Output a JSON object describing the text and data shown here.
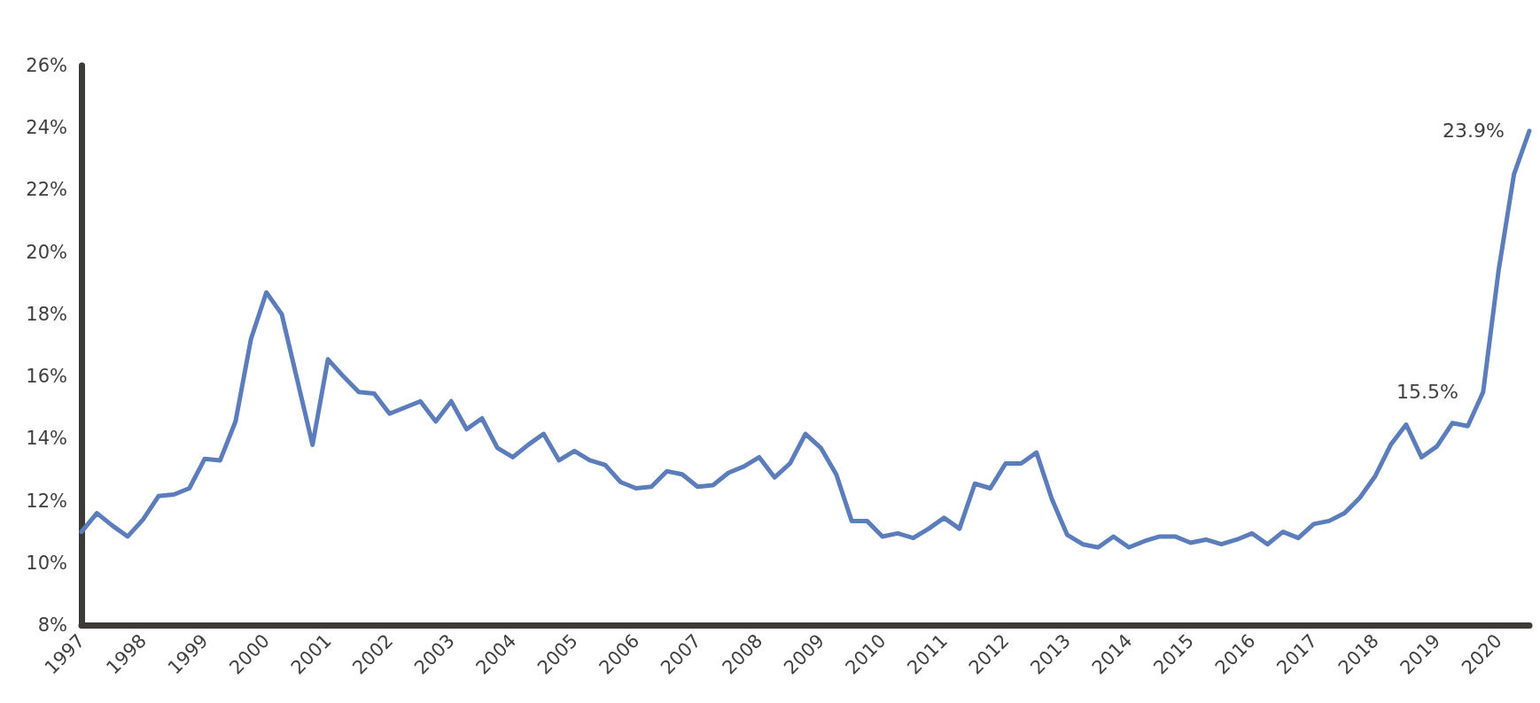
{
  "chart_data": {
    "type": "line",
    "marker": "none",
    "grid": false,
    "categories": [
      "1997",
      null,
      null,
      null,
      "1998",
      null,
      null,
      null,
      "1999",
      null,
      null,
      null,
      "2000",
      null,
      null,
      null,
      "2001",
      null,
      null,
      null,
      "2002",
      null,
      null,
      null,
      "2003",
      null,
      null,
      null,
      "2004",
      null,
      null,
      null,
      "2005",
      null,
      null,
      null,
      "2006",
      null,
      null,
      null,
      "2007",
      null,
      null,
      null,
      "2008",
      null,
      null,
      null,
      "2009",
      null,
      null,
      null,
      "2010",
      null,
      null,
      null,
      "2011",
      null,
      null,
      null,
      "2012",
      null,
      null,
      null,
      "2013",
      null,
      null,
      null,
      "2014",
      null,
      null,
      null,
      "2015",
      null,
      null,
      null,
      "2016",
      null,
      null,
      null,
      "2017",
      null,
      null,
      null,
      "2018",
      null,
      null,
      null,
      "2019",
      null,
      null,
      null,
      "2020",
      null,
      null
    ],
    "series": [
      {
        "color": "#5b7dbb",
        "values": [
          11.0,
          11.6,
          11.2,
          10.85,
          11.4,
          12.15,
          12.2,
          12.4,
          13.35,
          13.3,
          14.55,
          17.2,
          18.7,
          18.0,
          15.9,
          13.8,
          16.55,
          16.0,
          15.5,
          15.45,
          14.8,
          15.0,
          15.2,
          14.55,
          15.2,
          14.3,
          14.65,
          13.7,
          13.4,
          13.8,
          14.15,
          13.3,
          13.6,
          13.3,
          13.15,
          12.6,
          12.4,
          12.45,
          12.95,
          12.85,
          12.45,
          12.5,
          12.9,
          13.1,
          13.4,
          12.75,
          13.2,
          14.15,
          13.7,
          12.85,
          11.35,
          11.35,
          10.85,
          10.95,
          10.8,
          11.1,
          11.45,
          11.1,
          12.55,
          12.4,
          13.2,
          13.2,
          13.55,
          12.05,
          10.9,
          10.6,
          10.5,
          10.85,
          10.5,
          10.7,
          10.85,
          10.85,
          10.65,
          10.75,
          10.6,
          10.75,
          10.95,
          10.6,
          11.0,
          10.8,
          11.25,
          11.35,
          11.6,
          12.1,
          12.8,
          13.8,
          14.45,
          13.4,
          13.75,
          14.5,
          14.4,
          15.5,
          19.4,
          22.5,
          23.9
        ],
        "value_labels": [
          null,
          null,
          null,
          null,
          null,
          null,
          null,
          null,
          null,
          null,
          null,
          null,
          null,
          null,
          null,
          null,
          null,
          null,
          null,
          null,
          null,
          null,
          null,
          null,
          null,
          null,
          null,
          null,
          null,
          null,
          null,
          null,
          null,
          null,
          null,
          null,
          null,
          null,
          null,
          null,
          null,
          null,
          null,
          null,
          null,
          null,
          null,
          null,
          null,
          null,
          null,
          null,
          null,
          null,
          null,
          null,
          null,
          null,
          null,
          null,
          null,
          null,
          null,
          null,
          null,
          null,
          null,
          null,
          null,
          null,
          null,
          null,
          null,
          null,
          null,
          null,
          null,
          null,
          null,
          null,
          null,
          null,
          null,
          null,
          null,
          null,
          null,
          null,
          null,
          null,
          null,
          "15.5%",
          null,
          null,
          "23.9%"
        ]
      }
    ],
    "ylim": [
      8,
      26
    ],
    "yticks": [
      {
        "value": 8,
        "label": "8%"
      },
      {
        "value": 10,
        "label": "10%"
      },
      {
        "value": 12,
        "label": "12%"
      },
      {
        "value": 14,
        "label": "14%"
      },
      {
        "value": 16,
        "label": "16%"
      },
      {
        "value": 18,
        "label": "18%"
      },
      {
        "value": 20,
        "label": "20%"
      },
      {
        "value": 22,
        "label": "22%"
      },
      {
        "value": 24,
        "label": "24%"
      },
      {
        "value": 26,
        "label": "26%"
      }
    ]
  }
}
